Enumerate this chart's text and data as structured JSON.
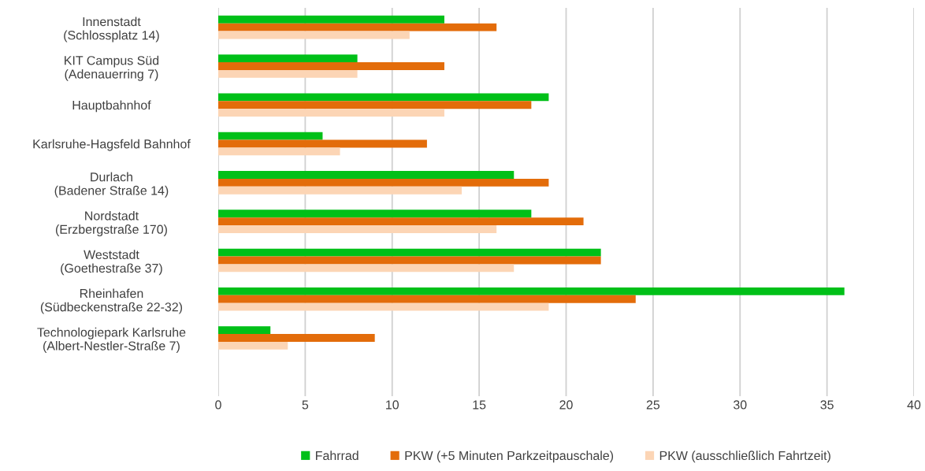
{
  "chart_data": {
    "type": "bar",
    "orientation": "horizontal",
    "categories": [
      "Innenstadt\n(Schlossplatz 14)",
      "KIT Campus Süd\n(Adenauerring 7)",
      "Hauptbahnhof",
      "Karlsruhe-Hagsfeld Bahnhof",
      "Durlach\n(Badener Straße 14)",
      "Nordstadt\n(Erzbergstraße 170)",
      "Weststadt\n(Goethestraße 37)",
      "Rheinhafen\n(Südbeckenstraße 22-32)",
      "Technologiepark Karlsruhe\n(Albert-Nestler-Straße 7)",
      null
    ],
    "series": [
      {
        "name": "Fahrrad",
        "color": "#00c018",
        "values": [
          13,
          8,
          19,
          6,
          17,
          18,
          22,
          36,
          3,
          null
        ]
      },
      {
        "name": "PKW (+5 Minuten Parkzeitpauschale)",
        "color": "#e36c0a",
        "values": [
          16,
          13,
          18,
          12,
          19,
          21,
          22,
          24,
          9,
          null
        ]
      },
      {
        "name": "PKW (ausschließlich Fahrtzeit)",
        "color": "#fcd5b5",
        "values": [
          11,
          8,
          13,
          7,
          14,
          16,
          17,
          19,
          4,
          null
        ]
      }
    ],
    "xlim": [
      0,
      40
    ],
    "xticks": [
      0,
      5,
      10,
      15,
      20,
      25,
      30,
      35,
      40
    ],
    "grid": "x",
    "legend": "bottom"
  }
}
